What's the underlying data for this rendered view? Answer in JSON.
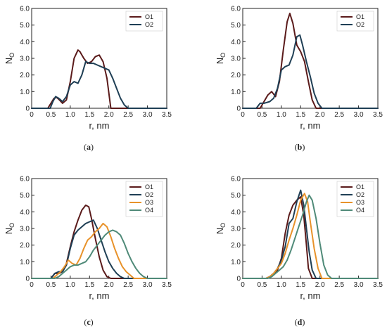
{
  "colors": {
    "O1": "#5a1a1a",
    "O2": "#1f3f55",
    "O3": "#e8922a",
    "O4": "#4f8a78"
  },
  "chart_data": [
    {
      "type": "line",
      "panel": "(a)",
      "xlabel": "r, nm",
      "ylabel": "N",
      "ylabel_sub": "O",
      "xlim": [
        0,
        3.5
      ],
      "ylim": [
        0,
        6
      ],
      "xticks": [
        "0",
        "0.5",
        "1.0",
        "1.5",
        "2.0",
        "2.5",
        "3.0",
        "3.5"
      ],
      "yticks": [
        "0",
        "1.0",
        "2.0",
        "3.0",
        "4.0",
        "5.0",
        "6.0"
      ],
      "grid": false,
      "legend": "top-right",
      "series": [
        {
          "name": "O1",
          "color": "#5a1a1a",
          "x": [
            0,
            0.42,
            0.5,
            0.58,
            0.65,
            0.72,
            0.8,
            0.9,
            1.0,
            1.1,
            1.2,
            1.25,
            1.35,
            1.45,
            1.55,
            1.65,
            1.75,
            1.85,
            1.95,
            2.05,
            2.5,
            3.5
          ],
          "y": [
            0,
            0,
            0.3,
            0.6,
            0.65,
            0.5,
            0.3,
            0.5,
            1.6,
            3.0,
            3.5,
            3.4,
            3.0,
            2.7,
            2.8,
            3.1,
            3.2,
            2.8,
            1.8,
            0,
            0,
            0
          ]
        },
        {
          "name": "O2",
          "color": "#1f3f55",
          "x": [
            0,
            0.48,
            0.55,
            0.62,
            0.7,
            0.8,
            0.9,
            1.0,
            1.1,
            1.2,
            1.3,
            1.4,
            1.5,
            1.6,
            1.7,
            1.8,
            1.9,
            2.0,
            2.1,
            2.2,
            2.3,
            2.4,
            2.5,
            3.5
          ],
          "y": [
            0,
            0,
            0.4,
            0.7,
            0.6,
            0.4,
            0.7,
            1.4,
            1.6,
            1.5,
            2.0,
            2.8,
            2.7,
            2.7,
            2.6,
            2.5,
            2.4,
            2.3,
            1.8,
            1.2,
            0.6,
            0.2,
            0,
            0
          ]
        }
      ]
    },
    {
      "type": "line",
      "panel": "(b)",
      "xlabel": "r, nm",
      "ylabel": "N",
      "ylabel_sub": "O",
      "xlim": [
        0,
        3.5
      ],
      "ylim": [
        0,
        6
      ],
      "xticks": [
        "0",
        "0.5",
        "1.0",
        "1.5",
        "2.0",
        "2.5",
        "3.0",
        "3.5"
      ],
      "yticks": [
        "0",
        "1.0",
        "2.0",
        "3.0",
        "4.0",
        "5.0",
        "6.0"
      ],
      "grid": false,
      "legend": "top-right",
      "series": [
        {
          "name": "O1",
          "color": "#5a1a1a",
          "x": [
            0,
            0.45,
            0.55,
            0.65,
            0.75,
            0.85,
            0.95,
            1.05,
            1.15,
            1.22,
            1.3,
            1.4,
            1.5,
            1.6,
            1.7,
            1.8,
            1.9,
            3.5
          ],
          "y": [
            0,
            0,
            0.4,
            0.8,
            1.0,
            0.7,
            1.6,
            3.5,
            5.2,
            5.7,
            5.1,
            3.8,
            3.4,
            2.8,
            1.6,
            0.5,
            0,
            0
          ]
        },
        {
          "name": "O2",
          "color": "#1f3f55",
          "x": [
            0,
            0.35,
            0.45,
            0.55,
            0.7,
            0.8,
            0.9,
            1.0,
            1.1,
            1.2,
            1.3,
            1.4,
            1.48,
            1.55,
            1.65,
            1.75,
            1.85,
            1.95,
            2.05,
            3.5
          ],
          "y": [
            0,
            0,
            0.3,
            0.3,
            0.4,
            0.6,
            1.2,
            2.3,
            2.5,
            2.6,
            3.2,
            4.3,
            4.4,
            3.8,
            2.8,
            1.9,
            0.9,
            0.3,
            0,
            0
          ]
        }
      ]
    },
    {
      "type": "line",
      "panel": "(c)",
      "xlabel": "r, nm",
      "ylabel": "N",
      "ylabel_sub": "O",
      "xlim": [
        0,
        3.5
      ],
      "ylim": [
        0,
        6
      ],
      "xticks": [
        "0",
        "0.5",
        "1.0",
        "1.5",
        "2.0",
        "2.5",
        "3.0",
        "3.5"
      ],
      "yticks": [
        "0",
        "1.0",
        "2.0",
        "3.0",
        "4.0",
        "5.0",
        "6.0"
      ],
      "grid": false,
      "legend": "top-right",
      "series": [
        {
          "name": "O1",
          "color": "#5a1a1a",
          "x": [
            0,
            0.5,
            0.6,
            0.7,
            0.8,
            0.9,
            1.0,
            1.1,
            1.2,
            1.3,
            1.4,
            1.48,
            1.55,
            1.65,
            1.75,
            1.85,
            1.95,
            2.05,
            3.5
          ],
          "y": [
            0,
            0,
            0.3,
            0.3,
            0.4,
            0.9,
            1.9,
            2.8,
            3.5,
            4.1,
            4.4,
            4.3,
            3.6,
            2.4,
            1.3,
            0.5,
            0.1,
            0,
            0
          ]
        },
        {
          "name": "O2",
          "color": "#1f3f55",
          "x": [
            0,
            0.5,
            0.6,
            0.7,
            0.8,
            0.9,
            1.0,
            1.1,
            1.2,
            1.3,
            1.4,
            1.5,
            1.6,
            1.7,
            1.8,
            1.9,
            2.0,
            2.1,
            2.2,
            2.3,
            2.4,
            3.5
          ],
          "y": [
            0,
            0,
            0.3,
            0.4,
            0.4,
            0.8,
            1.8,
            2.6,
            2.9,
            3.1,
            3.3,
            3.4,
            3.5,
            3.0,
            2.3,
            1.6,
            1.0,
            0.6,
            0.3,
            0.1,
            0,
            0
          ]
        },
        {
          "name": "O3",
          "color": "#e8922a",
          "x": [
            0,
            0.55,
            0.65,
            0.75,
            0.85,
            0.95,
            1.05,
            1.15,
            1.25,
            1.35,
            1.45,
            1.55,
            1.65,
            1.75,
            1.85,
            1.95,
            2.05,
            2.15,
            2.25,
            2.35,
            2.45,
            2.55,
            2.65,
            3.5
          ],
          "y": [
            0,
            0,
            0.2,
            0.4,
            0.7,
            1.1,
            0.9,
            0.8,
            1.2,
            1.8,
            2.3,
            2.5,
            2.8,
            3.0,
            3.3,
            3.1,
            2.5,
            1.8,
            1.2,
            0.7,
            0.4,
            0.2,
            0,
            0
          ]
        },
        {
          "name": "O4",
          "color": "#4f8a78",
          "x": [
            0,
            0.6,
            0.7,
            0.8,
            0.9,
            1.0,
            1.1,
            1.2,
            1.3,
            1.4,
            1.5,
            1.6,
            1.7,
            1.8,
            1.9,
            2.0,
            2.1,
            2.2,
            2.3,
            2.4,
            2.5,
            2.6,
            2.7,
            2.8,
            2.9,
            3.0,
            3.5
          ],
          "y": [
            0,
            0,
            0.1,
            0.3,
            0.5,
            0.7,
            0.8,
            0.8,
            0.9,
            1.0,
            1.3,
            1.7,
            2.0,
            2.3,
            2.6,
            2.8,
            2.9,
            2.8,
            2.6,
            2.1,
            1.5,
            1.0,
            0.6,
            0.3,
            0.1,
            0,
            0
          ]
        }
      ]
    },
    {
      "type": "line",
      "panel": "(d)",
      "xlabel": "r, nm",
      "ylabel": "N",
      "ylabel_sub": "O",
      "xlim": [
        0,
        3.5
      ],
      "ylim": [
        0,
        6
      ],
      "xticks": [
        "0",
        "0.5",
        "1.0",
        "1.5",
        "2.0",
        "2.5",
        "3.0",
        "3.5"
      ],
      "yticks": [
        "0",
        "1.0",
        "2.0",
        "3.0",
        "4.0",
        "5.0",
        "6.0"
      ],
      "grid": false,
      "legend": "top-right",
      "series": [
        {
          "name": "O1",
          "color": "#5a1a1a",
          "x": [
            0,
            0.6,
            0.7,
            0.8,
            0.9,
            1.0,
            1.1,
            1.2,
            1.3,
            1.4,
            1.5,
            1.58,
            1.65,
            1.7,
            1.8,
            3.5
          ],
          "y": [
            0,
            0,
            0.1,
            0.3,
            0.5,
            1.2,
            2.7,
            3.8,
            4.4,
            4.7,
            4.9,
            3.8,
            2.0,
            0.6,
            0,
            0
          ]
        },
        {
          "name": "O2",
          "color": "#1f3f55",
          "x": [
            0,
            0.6,
            0.7,
            0.8,
            0.9,
            1.0,
            1.1,
            1.2,
            1.3,
            1.4,
            1.5,
            1.58,
            1.65,
            1.72,
            1.8,
            1.9,
            3.5
          ],
          "y": [
            0,
            0,
            0.1,
            0.3,
            0.6,
            1.1,
            1.9,
            3.3,
            3.6,
            4.6,
            5.3,
            4.4,
            3.0,
            1.6,
            0.5,
            0,
            0
          ]
        },
        {
          "name": "O3",
          "color": "#e8922a",
          "x": [
            0,
            0.6,
            0.7,
            0.8,
            0.9,
            1.0,
            1.1,
            1.2,
            1.3,
            1.4,
            1.5,
            1.6,
            1.68,
            1.75,
            1.85,
            1.95,
            2.05,
            3.5
          ],
          "y": [
            0,
            0,
            0.1,
            0.3,
            0.6,
            0.9,
            1.5,
            2.3,
            3.0,
            3.8,
            4.7,
            5.1,
            4.6,
            3.4,
            1.8,
            0.6,
            0,
            0
          ]
        },
        {
          "name": "O4",
          "color": "#4f8a78",
          "x": [
            0,
            0.65,
            0.75,
            0.85,
            0.95,
            1.05,
            1.15,
            1.25,
            1.35,
            1.45,
            1.55,
            1.65,
            1.72,
            1.8,
            1.9,
            2.0,
            2.1,
            2.2,
            2.3,
            3.5
          ],
          "y": [
            0,
            0,
            0.1,
            0.3,
            0.5,
            0.7,
            1.1,
            1.7,
            2.4,
            3.1,
            3.8,
            4.6,
            5.0,
            4.7,
            3.6,
            2.1,
            0.8,
            0.2,
            0,
            0
          ]
        }
      ]
    }
  ]
}
